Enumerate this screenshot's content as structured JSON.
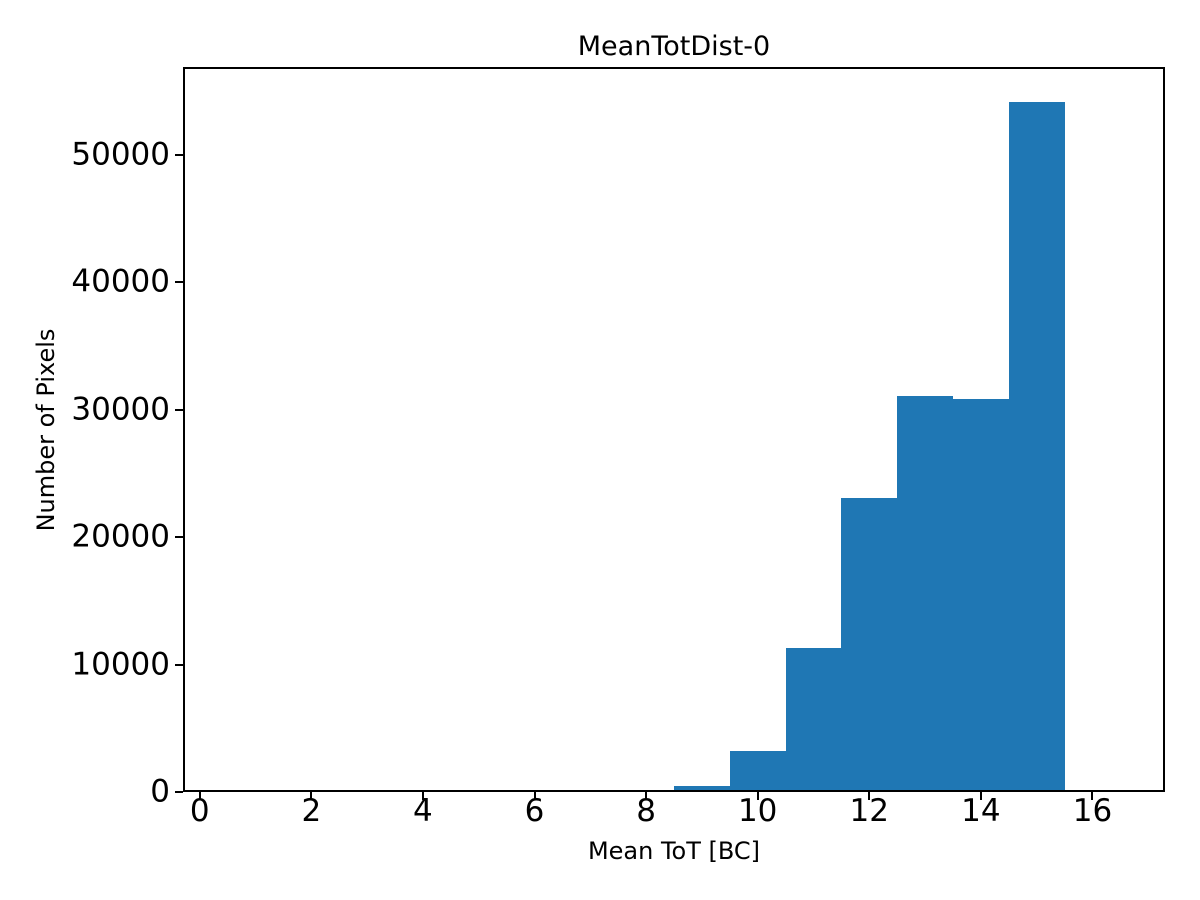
{
  "figure": {
    "background_color": "#ffffff",
    "text_color": "#000000",
    "spine_color": "#000000"
  },
  "chart_data": {
    "type": "bar",
    "title": "MeanTotDist-0",
    "xlabel": "Mean ToT [BC]",
    "ylabel": "Number of Pixels",
    "bar_color": "#1f77b4",
    "grid": false,
    "legend": null,
    "xlim": [
      -0.3,
      17.3
    ],
    "ylim": [
      0,
      56900
    ],
    "xticks": [
      0,
      2,
      4,
      6,
      8,
      10,
      12,
      14,
      16
    ],
    "yticks": [
      0,
      10000,
      20000,
      30000,
      40000,
      50000
    ],
    "bin_edges": [
      0.5,
      1.5,
      2.5,
      3.5,
      4.5,
      5.5,
      6.5,
      7.5,
      8.5,
      9.5,
      10.5,
      11.5,
      12.5,
      13.5,
      14.5,
      15.5,
      16.5
    ],
    "values": [
      0,
      0,
      0,
      0,
      0,
      0,
      0,
      150,
      470,
      3200,
      11300,
      23100,
      31100,
      30850,
      54150,
      0
    ]
  }
}
